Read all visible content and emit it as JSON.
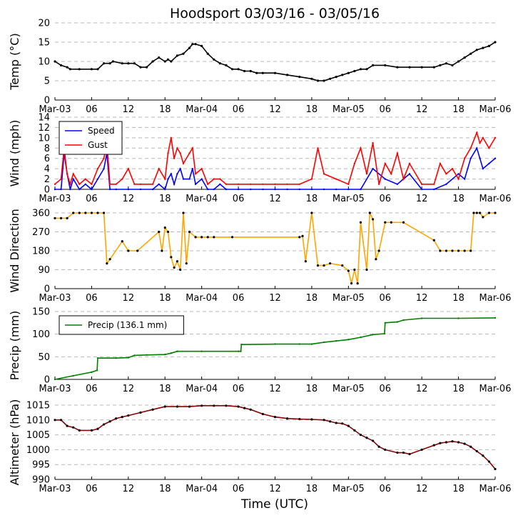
{
  "figure": {
    "title": "Hoodsport 03/03/16 - 03/05/16",
    "xlabel": "Time (UTC)",
    "xticks": [
      "Mar-03",
      "06",
      "12",
      "18",
      "Mar-04",
      "06",
      "12",
      "18",
      "Mar-05",
      "06",
      "12",
      "18",
      "Mar-06"
    ]
  },
  "chart_data": [
    {
      "type": "line",
      "ylabel": "Temp (°C)",
      "ylim": [
        0,
        20
      ],
      "yticks": [
        0,
        5,
        10,
        15,
        20
      ],
      "xlim_hours": [
        0,
        72
      ],
      "grid": true,
      "series": [
        {
          "color": "#000000",
          "marker": "dots",
          "x": [
            0,
            1,
            2,
            2.5,
            4,
            6,
            7,
            8,
            9,
            9.5,
            11,
            12,
            13,
            14,
            15,
            16,
            17,
            18,
            18.5,
            19,
            20,
            21,
            22,
            22.5,
            23,
            24,
            25,
            26,
            27,
            28,
            29,
            30,
            31,
            32,
            33,
            34,
            36,
            38,
            40,
            42,
            43,
            44,
            45,
            46,
            47,
            48,
            49,
            50,
            51,
            52,
            54,
            56,
            58,
            60,
            62,
            63,
            64,
            65,
            66,
            67,
            68,
            69,
            70,
            71,
            72
          ],
          "y": [
            10,
            9,
            8.5,
            8,
            8,
            8,
            8,
            9.5,
            9.5,
            10,
            9.5,
            9.5,
            9.5,
            8.5,
            8.5,
            10,
            11,
            10,
            10.5,
            10,
            11.5,
            12,
            13.5,
            14.5,
            14.5,
            14,
            12,
            10.5,
            9.5,
            9,
            8,
            8,
            7.5,
            7.5,
            7,
            7,
            7,
            6.5,
            6,
            5.5,
            5,
            5,
            5.5,
            6,
            6.5,
            7,
            7.5,
            8,
            8,
            9,
            9,
            8.5,
            8.5,
            8.5,
            8.5,
            9,
            9.5,
            9,
            10,
            11,
            12,
            13,
            13.5,
            14,
            15
          ]
        }
      ]
    },
    {
      "type": "line",
      "ylabel": "Wind (mph)",
      "ylim": [
        0,
        14
      ],
      "yticks": [
        0,
        2,
        4,
        6,
        8,
        10,
        12,
        14
      ],
      "xlim_hours": [
        0,
        72
      ],
      "grid": true,
      "legend": "upper-left",
      "series": [
        {
          "name": "Speed",
          "color": "#0000ff",
          "x": [
            0,
            1,
            1.5,
            2,
            2.5,
            3,
            4,
            5,
            6,
            7,
            8,
            8.5,
            9,
            10,
            12,
            14,
            16,
            17,
            18,
            18.5,
            19,
            19.5,
            20,
            20.5,
            21,
            22,
            22.5,
            23,
            24,
            25,
            26,
            27,
            28,
            30,
            32,
            34,
            36,
            38,
            40,
            42,
            44,
            46,
            48,
            50,
            52,
            54,
            56,
            58,
            60,
            62,
            64,
            66,
            67,
            68,
            69,
            69.5,
            70,
            71,
            72
          ],
          "y": [
            0,
            0,
            7,
            3,
            0,
            2,
            0,
            1,
            0,
            2,
            4,
            7,
            0,
            0,
            0,
            0,
            0,
            1,
            0,
            2,
            3,
            1,
            3,
            4,
            2,
            2,
            4,
            1,
            2,
            0,
            0,
            1,
            0,
            0,
            0,
            0,
            0,
            0,
            0,
            0,
            0,
            0,
            0,
            0,
            4,
            2,
            1,
            3,
            0,
            0,
            1,
            3,
            2,
            6,
            8,
            6,
            4,
            5,
            6
          ]
        },
        {
          "name": "Gust",
          "color": "#ff0000",
          "x": [
            0,
            1,
            1.5,
            2,
            2.5,
            3,
            4,
            5,
            6,
            7,
            8,
            8.5,
            9,
            10,
            11,
            12,
            13,
            14,
            16,
            17,
            18,
            18.5,
            19,
            19.5,
            20,
            20.5,
            21,
            22,
            22.5,
            23,
            24,
            25,
            26,
            27,
            28,
            30,
            32,
            34,
            36,
            38,
            40,
            42,
            43,
            44,
            46,
            48,
            49,
            50,
            51,
            52,
            53,
            54,
            55,
            56,
            57,
            58,
            60,
            62,
            63,
            64,
            65,
            66,
            67,
            68,
            69,
            69.5,
            70,
            71,
            72
          ],
          "y": [
            1,
            2,
            8,
            3,
            1,
            3,
            1,
            2,
            1,
            4,
            6,
            9,
            1,
            1,
            2,
            4,
            1,
            1,
            1,
            4,
            2,
            7,
            10,
            6,
            8,
            7,
            5,
            7,
            8,
            3,
            4,
            1,
            2,
            2,
            1,
            1,
            1,
            1,
            1,
            1,
            1,
            2,
            8,
            3,
            2,
            1,
            5,
            8,
            3,
            9,
            1,
            5,
            3,
            7,
            2,
            5,
            1,
            1,
            5,
            3,
            4,
            2,
            6,
            8,
            11,
            9,
            10,
            8,
            10
          ]
        }
      ]
    },
    {
      "type": "scatter",
      "ylabel": "Wind Direction",
      "ylim": [
        0,
        360
      ],
      "yticks": [
        0,
        90,
        180,
        270,
        360
      ],
      "xlim_hours": [
        0,
        72
      ],
      "grid": true,
      "series": [
        {
          "color": "#ffa500",
          "marker": "dots",
          "x": [
            0,
            1,
            2,
            3,
            4,
            5,
            6,
            7,
            8,
            8.5,
            9,
            11,
            12,
            13.5,
            17,
            17.5,
            18,
            18.5,
            19,
            19.5,
            20,
            20.5,
            21,
            21.5,
            22,
            23,
            24,
            25,
            26,
            29,
            40,
            40.5,
            41,
            42,
            43,
            44,
            45,
            47,
            48,
            48.5,
            49,
            49.5,
            50,
            51,
            51.5,
            52,
            52.5,
            53,
            54,
            55,
            57,
            62,
            63,
            64,
            65,
            66,
            67,
            68,
            68.5,
            69,
            69.5,
            70,
            71,
            72
          ],
          "y": [
            335,
            335,
            335,
            360,
            360,
            360,
            360,
            360,
            360,
            120,
            140,
            225,
            180,
            180,
            270,
            180,
            290,
            270,
            150,
            100,
            130,
            90,
            360,
            120,
            270,
            245,
            245,
            245,
            245,
            245,
            245,
            250,
            130,
            360,
            110,
            110,
            120,
            110,
            85,
            25,
            90,
            25,
            315,
            90,
            360,
            330,
            140,
            180,
            315,
            315,
            315,
            230,
            180,
            180,
            180,
            180,
            180,
            180,
            360,
            360,
            360,
            340,
            360,
            360
          ]
        }
      ]
    },
    {
      "type": "line",
      "ylabel": "Precip (mm)",
      "ylim": [
        0,
        150
      ],
      "yticks": [
        0,
        50,
        100,
        150
      ],
      "xlim_hours": [
        0,
        72
      ],
      "grid": true,
      "legend": "upper-left",
      "series": [
        {
          "name": "Precip (136.1 mm)",
          "color": "#008000",
          "x": [
            0,
            3,
            6,
            6.9,
            7,
            10,
            12,
            13,
            15,
            18,
            19,
            20,
            24,
            30,
            30.4,
            30.5,
            36,
            40,
            42,
            44,
            46,
            48,
            50,
            52,
            53.9,
            54,
            56,
            57,
            60,
            66,
            72
          ],
          "y": [
            0,
            8,
            16,
            20,
            47,
            47,
            48,
            53,
            54,
            55,
            58,
            62,
            62,
            62,
            62,
            77,
            78,
            78,
            78,
            82,
            85,
            88,
            93,
            99,
            101,
            125,
            127,
            131,
            135,
            135,
            136
          ]
        }
      ]
    },
    {
      "type": "line",
      "ylabel": "Altimeter (hPa)",
      "ylim": [
        990,
        1015
      ],
      "yticks": [
        990,
        995,
        1000,
        1005,
        1010,
        1015
      ],
      "xlim_hours": [
        0,
        72
      ],
      "grid": true,
      "series": [
        {
          "color": "#8b0000",
          "marker": "dots",
          "x": [
            0,
            1,
            2,
            3,
            4,
            6,
            7,
            8,
            9,
            10,
            11,
            12,
            14,
            16,
            18,
            20,
            22,
            24,
            26,
            28,
            30,
            31,
            32,
            34,
            36,
            38,
            40,
            42,
            44,
            45,
            46,
            47,
            48,
            49,
            50,
            51,
            52,
            53,
            54,
            56,
            57,
            58,
            60,
            62,
            63,
            64,
            65,
            66,
            67,
            68,
            69,
            70,
            71,
            72
          ],
          "y": [
            1010,
            1010,
            1008,
            1007.5,
            1006.5,
            1006.5,
            1007,
            1008.5,
            1009.5,
            1010.5,
            1011,
            1011.5,
            1012.5,
            1013.5,
            1014.5,
            1014.5,
            1014.5,
            1014.8,
            1014.8,
            1014.8,
            1014.5,
            1014,
            1013.5,
            1012,
            1011,
            1010.5,
            1010.3,
            1010.2,
            1010,
            1009.5,
            1009,
            1008.8,
            1008,
            1006.5,
            1005,
            1004,
            1003,
            1001,
            1000,
            999,
            999,
            998.5,
            1000,
            1001.5,
            1002.2,
            1002.5,
            1002.8,
            1002.5,
            1002,
            1001,
            999.5,
            998,
            996,
            993.5
          ]
        }
      ]
    }
  ]
}
